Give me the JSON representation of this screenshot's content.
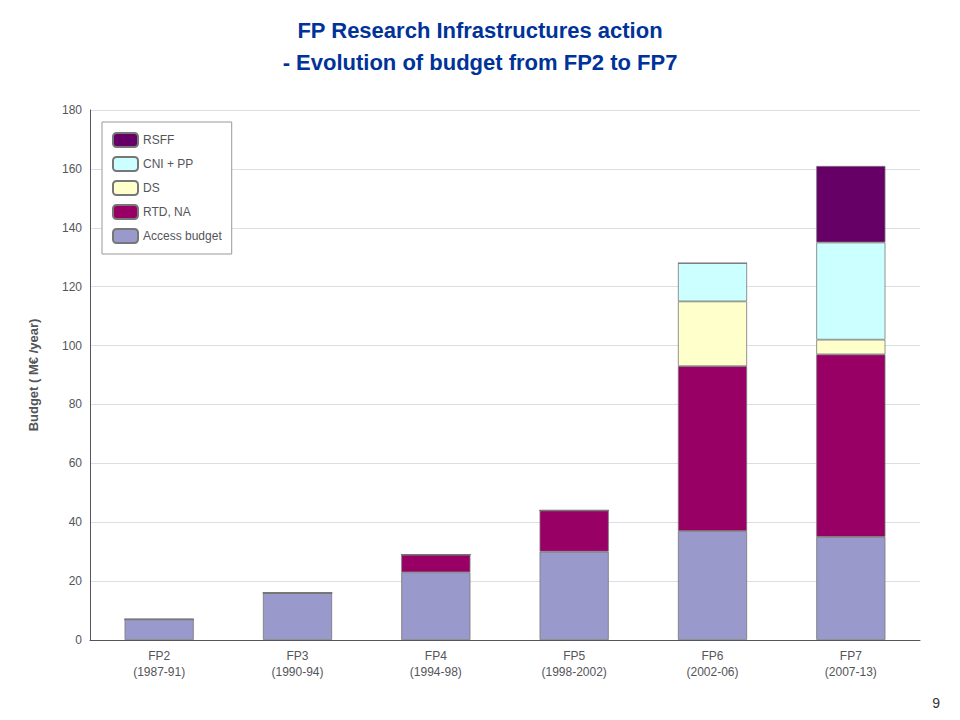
{
  "chart_data": {
    "type": "bar",
    "title": "FP Research Infrastructures action",
    "subtitle": "- Evolution of budget from FP2 to FP7",
    "categories": [
      "FP2\n(1987-91)",
      "FP3\n(1990-94)",
      "FP4\n(1994-98)",
      "FP5\n(1998-2002)",
      "FP6\n(2002-06)",
      "FP7\n(2007-13)"
    ],
    "series": [
      {
        "name": "Access budget",
        "color": "#9999CC",
        "values": [
          7,
          16,
          23,
          30,
          37,
          35
        ]
      },
      {
        "name": "RTD, NA",
        "color": "#990066",
        "values": [
          0,
          0,
          6,
          14,
          56,
          62
        ]
      },
      {
        "name": "DS",
        "color": "#FFFFCC",
        "values": [
          0,
          0,
          0,
          0,
          22,
          5
        ]
      },
      {
        "name": "CNI + PP",
        "color": "#CCFFFF",
        "values": [
          0,
          0,
          0,
          0,
          13,
          33
        ]
      },
      {
        "name": "RSFF",
        "color": "#660066",
        "values": [
          0,
          0,
          0,
          0,
          0,
          26
        ]
      }
    ],
    "stacked": true,
    "ylabel": "Budget ( M€ /year)",
    "ylim": [
      0,
      180
    ],
    "yticks": [
      0,
      20,
      40,
      60,
      80,
      100,
      120,
      140,
      160,
      180
    ],
    "grid": true,
    "legend": "upper left",
    "annotations": [
      "9"
    ]
  }
}
